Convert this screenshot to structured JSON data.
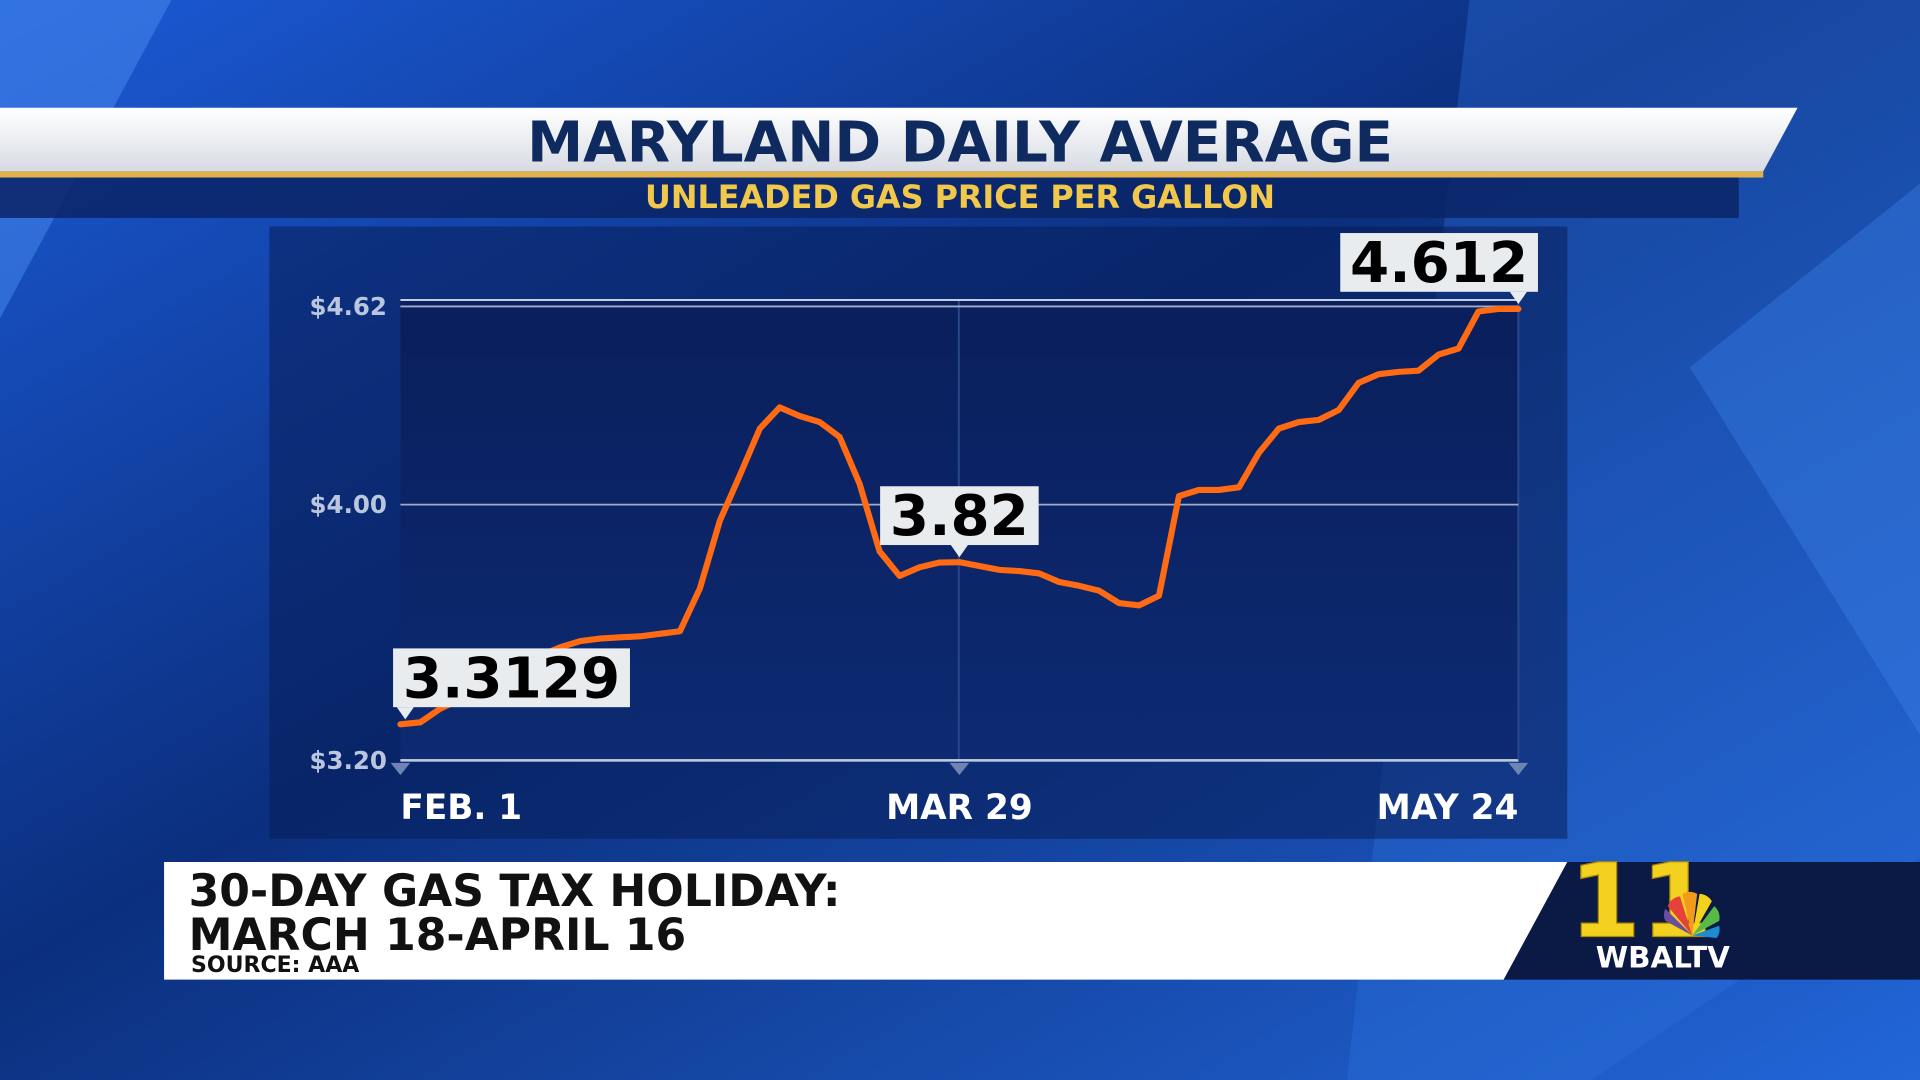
{
  "chart_data": {
    "type": "line",
    "title": "MARYLAND DAILY AVERAGE",
    "subtitle": "UNLEADED GAS PRICE PER GALLON",
    "categories": [
      "FEB. 1",
      null,
      null,
      null,
      null,
      null,
      null,
      null,
      null,
      null,
      null,
      null,
      null,
      null,
      null,
      null,
      null,
      null,
      null,
      null,
      null,
      null,
      null,
      null,
      null,
      null,
      null,
      null,
      "MAR 29",
      null,
      null,
      null,
      null,
      null,
      null,
      null,
      null,
      null,
      null,
      null,
      null,
      null,
      null,
      null,
      null,
      null,
      null,
      null,
      null,
      null,
      null,
      null,
      null,
      null,
      null,
      null,
      "MAY 24"
    ],
    "values": [
      3.3129,
      3.319,
      3.362,
      3.392,
      3.423,
      3.45,
      3.488,
      3.527,
      3.554,
      3.573,
      3.581,
      3.585,
      3.588,
      3.596,
      3.604,
      3.738,
      3.95,
      4.092,
      4.238,
      4.304,
      4.277,
      4.258,
      4.212,
      4.065,
      3.854,
      3.777,
      3.804,
      3.819,
      3.82,
      3.808,
      3.796,
      3.792,
      3.785,
      3.758,
      3.746,
      3.731,
      3.692,
      3.685,
      3.715,
      4.027,
      4.046,
      4.046,
      4.054,
      4.162,
      4.238,
      4.258,
      4.265,
      4.296,
      4.381,
      4.408,
      4.415,
      4.419,
      4.469,
      4.488,
      4.604,
      4.612,
      4.612
    ],
    "value_labels": [
      "3.3129",
      null,
      null,
      null,
      null,
      null,
      null,
      null,
      null,
      null,
      null,
      null,
      null,
      null,
      null,
      null,
      null,
      null,
      null,
      null,
      null,
      null,
      null,
      null,
      null,
      null,
      null,
      null,
      "3.82",
      null,
      null,
      null,
      null,
      null,
      null,
      null,
      null,
      null,
      null,
      null,
      null,
      null,
      null,
      null,
      null,
      null,
      null,
      null,
      null,
      null,
      null,
      null,
      null,
      null,
      null,
      null,
      "4.612"
    ],
    "color": "#ff6a13",
    "ylim": [
      3.2,
      4.64
    ],
    "yticks": [
      {
        "value": 3.2,
        "label": "$3.20"
      },
      {
        "value": 4.0,
        "label": "$4.00"
      },
      {
        "value": 4.62,
        "label": "$4.62"
      }
    ],
    "grid": true,
    "annotation": [
      "30-DAY GAS TAX HOLIDAY:",
      "MARCH 18-APRIL 16"
    ],
    "source": "SOURCE: AAA"
  },
  "logo": {
    "number": "11",
    "station": "WBALTV"
  }
}
